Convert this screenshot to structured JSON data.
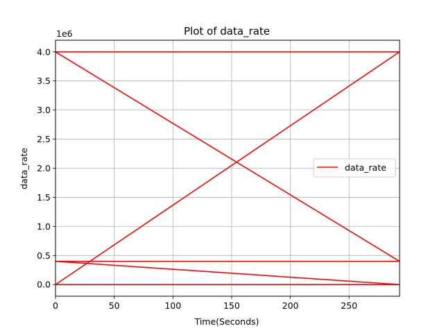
{
  "chart_data": {
    "type": "line",
    "title": "Plot of data_rate",
    "xlabel": "Time(Seconds)",
    "ylabel": "data_rate",
    "y_offset_label": "1e6",
    "xlim": [
      0,
      293
    ],
    "ylim": [
      -200000,
      4200000
    ],
    "x_ticks": [
      0,
      50,
      100,
      150,
      200,
      250
    ],
    "x_tick_labels": [
      "0",
      "50",
      "100",
      "150",
      "200",
      "250"
    ],
    "y_ticks": [
      0,
      500000,
      1000000,
      1500000,
      2000000,
      2500000,
      3000000,
      3500000,
      4000000
    ],
    "y_tick_labels": [
      "0.0",
      "0.5",
      "1.0",
      "1.5",
      "2.0",
      "2.5",
      "3.0",
      "3.5",
      "4.0"
    ],
    "grid": true,
    "legend_position": "center-right",
    "series": [
      {
        "name": "data_rate",
        "color": "#ff0000",
        "x": [
          0,
          293,
          0,
          293,
          0,
          293,
          0,
          293
        ],
        "y": [
          0,
          0,
          400000,
          400000,
          4000000,
          4000000,
          0,
          4000000
        ]
      }
    ]
  }
}
